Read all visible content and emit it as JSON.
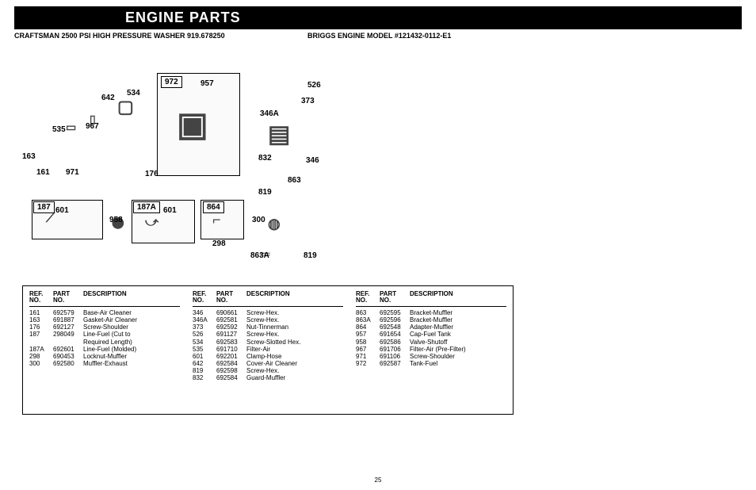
{
  "title": "ENGINE PARTS",
  "subtitle_left": "CRAFTSMAN 2500 PSI HIGH PRESSURE WASHER 919.678250",
  "subtitle_right": "BRIGGS ENGINE MODEL #121432-0112-E1",
  "callouts": {
    "c972": "972",
    "c957": "957",
    "c642": "642",
    "c534": "534",
    "c526": "526",
    "c373": "373",
    "c346A": "346A",
    "c535": "535",
    "c967": "967",
    "c163": "163",
    "c161": "161",
    "c971": "971",
    "c176": "176",
    "c832": "832",
    "c346": "346",
    "c863": "863",
    "c819t": "819",
    "c187": "187",
    "c601a": "601",
    "c958": "958",
    "c187A": "187A",
    "c601b": "601",
    "c864": "864",
    "c298": "298",
    "c300": "300",
    "c863A": "863A",
    "c819b": "819"
  },
  "headers": {
    "ref": "REF.\nNO.",
    "part": "PART\nNO.",
    "desc": "DESCRIPTION"
  },
  "col1": [
    {
      "ref": "161",
      "part": "692579",
      "desc": "Base-Air Cleaner"
    },
    {
      "ref": "163",
      "part": "691887",
      "desc": "Gasket-Air Cleaner"
    },
    {
      "ref": "176",
      "part": "692127",
      "desc": "Screw-Shoulder"
    },
    {
      "ref": "187",
      "part": "298049",
      "desc": "Line-Fuel (Cut to"
    },
    {
      "ref": "",
      "part": "",
      "desc": "Required Length)"
    },
    {
      "ref": "187A",
      "part": "692601",
      "desc": "Line-Fuel (Molded)"
    },
    {
      "ref": "298",
      "part": "690453",
      "desc": "Locknut-Muffler"
    },
    {
      "ref": "300",
      "part": "692580",
      "desc": "Muffler-Exhaust"
    }
  ],
  "col2": [
    {
      "ref": "346",
      "part": "690661",
      "desc": "Screw-Hex."
    },
    {
      "ref": "346A",
      "part": "692581",
      "desc": "Screw-Hex."
    },
    {
      "ref": "373",
      "part": "692592",
      "desc": "Nut-Tinnerman"
    },
    {
      "ref": "526",
      "part": "691127",
      "desc": "Screw-Hex."
    },
    {
      "ref": "534",
      "part": "692583",
      "desc": "Screw-Slotted Hex."
    },
    {
      "ref": "535",
      "part": "691710",
      "desc": "Filter-Air"
    },
    {
      "ref": "601",
      "part": "692201",
      "desc": "Clamp-Hose"
    },
    {
      "ref": "642",
      "part": "692584",
      "desc": "Cover-Air Cleaner"
    },
    {
      "ref": "819",
      "part": "692598",
      "desc": "Screw-Hex."
    },
    {
      "ref": "832",
      "part": "692584",
      "desc": "Guard-Muffler"
    }
  ],
  "col3": [
    {
      "ref": "863",
      "part": "692595",
      "desc": "Bracket-Muffler"
    },
    {
      "ref": "863A",
      "part": "692596",
      "desc": "Bracket-Muffler"
    },
    {
      "ref": "864",
      "part": "692548",
      "desc": "Adapter-Muffler"
    },
    {
      "ref": "957",
      "part": "691654",
      "desc": "Cap-Fuel Tank"
    },
    {
      "ref": "958",
      "part": "692586",
      "desc": "Valve-Shutoff"
    },
    {
      "ref": "967",
      "part": "691706",
      "desc": "Filter-Air (Pre-Filter)"
    },
    {
      "ref": "971",
      "part": "691106",
      "desc": "Screw-Shoulder"
    },
    {
      "ref": "972",
      "part": "692587",
      "desc": "Tank-Fuel"
    }
  ],
  "page_number": "25"
}
